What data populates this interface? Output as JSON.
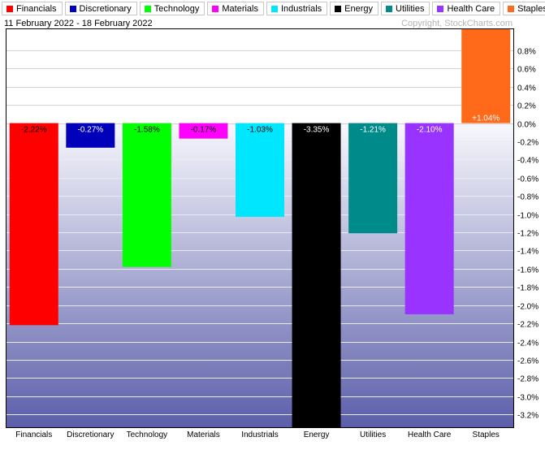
{
  "header": {
    "date_range": "11 February 2022 - 18 February 2022",
    "copyright": "Copyright, StockCharts.com"
  },
  "legend": [
    {
      "label": "Financials",
      "color": "#ff0000"
    },
    {
      "label": "Discretionary",
      "color": "#0000bb"
    },
    {
      "label": "Technology",
      "color": "#00ff00"
    },
    {
      "label": "Materials",
      "color": "#ff00ff"
    },
    {
      "label": "Industrials",
      "color": "#00e6ff"
    },
    {
      "label": "Energy",
      "color": "#000000"
    },
    {
      "label": "Utilities",
      "color": "#008b8b"
    },
    {
      "label": "Health Care",
      "color": "#9933ff"
    },
    {
      "label": "Staples",
      "color": "#ff6a1a"
    }
  ],
  "chart_data": {
    "type": "bar",
    "categories": [
      "Financials",
      "Discretionary",
      "Technology",
      "Materials",
      "Industrials",
      "Energy",
      "Utilities",
      "Health Care",
      "Staples"
    ],
    "values": [
      -2.22,
      -0.27,
      -1.58,
      -0.17,
      -1.03,
      -3.35,
      -1.21,
      -2.1,
      1.04
    ],
    "data_labels": [
      "-2.22%",
      "-0.27%",
      "-1.58%",
      "-0.17%",
      "-1.03%",
      "-3.35%",
      "-1.21%",
      "-2.10%",
      "+1.04%"
    ],
    "colors": [
      "#ff0000",
      "#0000bb",
      "#00ff00",
      "#ff00ff",
      "#00e6ff",
      "#000000",
      "#008b8b",
      "#9933ff",
      "#ff6a1a"
    ],
    "label_colors": [
      "#000000",
      "#ffffff",
      "#000000",
      "#000000",
      "#000000",
      "#ffffff",
      "#ffffff",
      "#ffffff",
      "#ffffff"
    ],
    "yticks": [
      0.8,
      0.6,
      0.4,
      0.2,
      0.0,
      -0.2,
      -0.4,
      -0.6,
      -0.8,
      -1.0,
      -1.2,
      -1.4,
      -1.6,
      -1.8,
      -2.0,
      -2.2,
      -2.4,
      -2.6,
      -2.8,
      -3.0,
      -3.2
    ],
    "ytick_labels": [
      "0.8%",
      "0.6%",
      "0.4%",
      "0.2%",
      "0.0%",
      "-0.2%",
      "-0.4%",
      "-0.6%",
      "-0.8%",
      "-1.0%",
      "-1.2%",
      "-1.4%",
      "-1.6%",
      "-1.8%",
      "-2.0%",
      "-2.2%",
      "-2.4%",
      "-2.6%",
      "-2.8%",
      "-3.0%",
      "-3.2%"
    ],
    "ylim": [
      -3.35,
      1.04
    ],
    "grid": true,
    "y_axis_position": "right",
    "title": "",
    "xlabel": "",
    "ylabel": ""
  }
}
